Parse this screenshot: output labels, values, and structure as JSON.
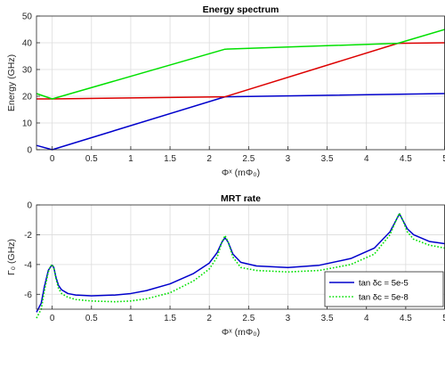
{
  "chart_data": [
    {
      "type": "line",
      "title": "Energy spectrum",
      "xlabel": "Φˣ (mΦ₀)",
      "ylabel": "Energy (GHz)",
      "xlim": [
        -0.2,
        5
      ],
      "ylim": [
        0,
        50
      ],
      "xticks": [
        "0",
        "0.5",
        "1",
        "1.5",
        "2",
        "2.5",
        "3",
        "3.5",
        "4",
        "4.5",
        "5"
      ],
      "yticks": [
        "0",
        "10",
        "20",
        "30",
        "40",
        "50"
      ],
      "grid": true,
      "series": [
        {
          "color": "#0000cc",
          "x": [
            -0.2,
            0,
            2.2,
            5
          ],
          "y": [
            1.6,
            0,
            19.8,
            21
          ]
        },
        {
          "color": "#dd0000",
          "x": [
            -0.2,
            0,
            2.2,
            4.4,
            5
          ],
          "y": [
            19,
            19,
            19.8,
            39.8,
            40
          ]
        },
        {
          "color": "#00e000",
          "x": [
            -0.2,
            0,
            2.2,
            4.4,
            5
          ],
          "y": [
            21,
            19,
            37.6,
            39.8,
            45
          ]
        }
      ]
    },
    {
      "type": "line",
      "title": "MRT rate",
      "xlabel": "Φˣ (mΦ₀)",
      "ylabel": "Γ₀ (GHz)",
      "xlim": [
        -0.2,
        5
      ],
      "ylim": [
        -7,
        0
      ],
      "xticks": [
        "0",
        "0.5",
        "1",
        "1.5",
        "2",
        "2.5",
        "3",
        "3.5",
        "4",
        "4.5",
        "5"
      ],
      "yticks": [
        "-6",
        "-4",
        "-2",
        "0"
      ],
      "grid": true,
      "legend_position": "bottom-right",
      "series": [
        {
          "name": "tan δc = 5e-5",
          "color": "#0000cc",
          "style": "solid",
          "x": [
            -0.2,
            -0.14,
            -0.1,
            -0.05,
            -0.02,
            0,
            0.02,
            0.05,
            0.08,
            0.12,
            0.2,
            0.3,
            0.5,
            0.8,
            1.0,
            1.2,
            1.5,
            1.8,
            2.0,
            2.1,
            2.16,
            2.2,
            2.24,
            2.3,
            2.4,
            2.6,
            3.0,
            3.4,
            3.8,
            4.1,
            4.3,
            4.38,
            4.42,
            4.46,
            4.52,
            4.6,
            4.8,
            5.0
          ],
          "y": [
            -7.2,
            -6.6,
            -5.5,
            -4.4,
            -4.15,
            -4.05,
            -4.2,
            -4.9,
            -5.4,
            -5.7,
            -5.95,
            -6.05,
            -6.1,
            -6.05,
            -5.95,
            -5.75,
            -5.3,
            -4.6,
            -3.9,
            -3.2,
            -2.5,
            -2.2,
            -2.5,
            -3.3,
            -3.85,
            -4.1,
            -4.2,
            -4.05,
            -3.6,
            -2.9,
            -1.8,
            -1.0,
            -0.6,
            -1.0,
            -1.6,
            -2.0,
            -2.45,
            -2.6
          ]
        },
        {
          "name": "tan δc = 5e-8",
          "color": "#00e000",
          "style": "dotted",
          "x": [
            -0.2,
            -0.14,
            -0.1,
            -0.05,
            -0.02,
            0,
            0.02,
            0.05,
            0.08,
            0.12,
            0.2,
            0.3,
            0.5,
            0.8,
            1.0,
            1.2,
            1.5,
            1.8,
            2.0,
            2.1,
            2.16,
            2.2,
            2.24,
            2.3,
            2.4,
            2.6,
            3.0,
            3.4,
            3.8,
            4.1,
            4.3,
            4.38,
            4.42,
            4.46,
            4.52,
            4.6,
            4.8,
            5.0
          ],
          "y": [
            -7.6,
            -7.0,
            -5.8,
            -4.5,
            -4.1,
            -4.0,
            -4.2,
            -5.0,
            -5.6,
            -5.95,
            -6.2,
            -6.35,
            -6.45,
            -6.5,
            -6.45,
            -6.3,
            -5.9,
            -5.1,
            -4.3,
            -3.5,
            -2.5,
            -2.05,
            -2.5,
            -3.5,
            -4.2,
            -4.4,
            -4.5,
            -4.4,
            -4.0,
            -3.3,
            -2.0,
            -1.0,
            -0.55,
            -1.0,
            -1.8,
            -2.3,
            -2.7,
            -2.9
          ]
        }
      ]
    }
  ]
}
